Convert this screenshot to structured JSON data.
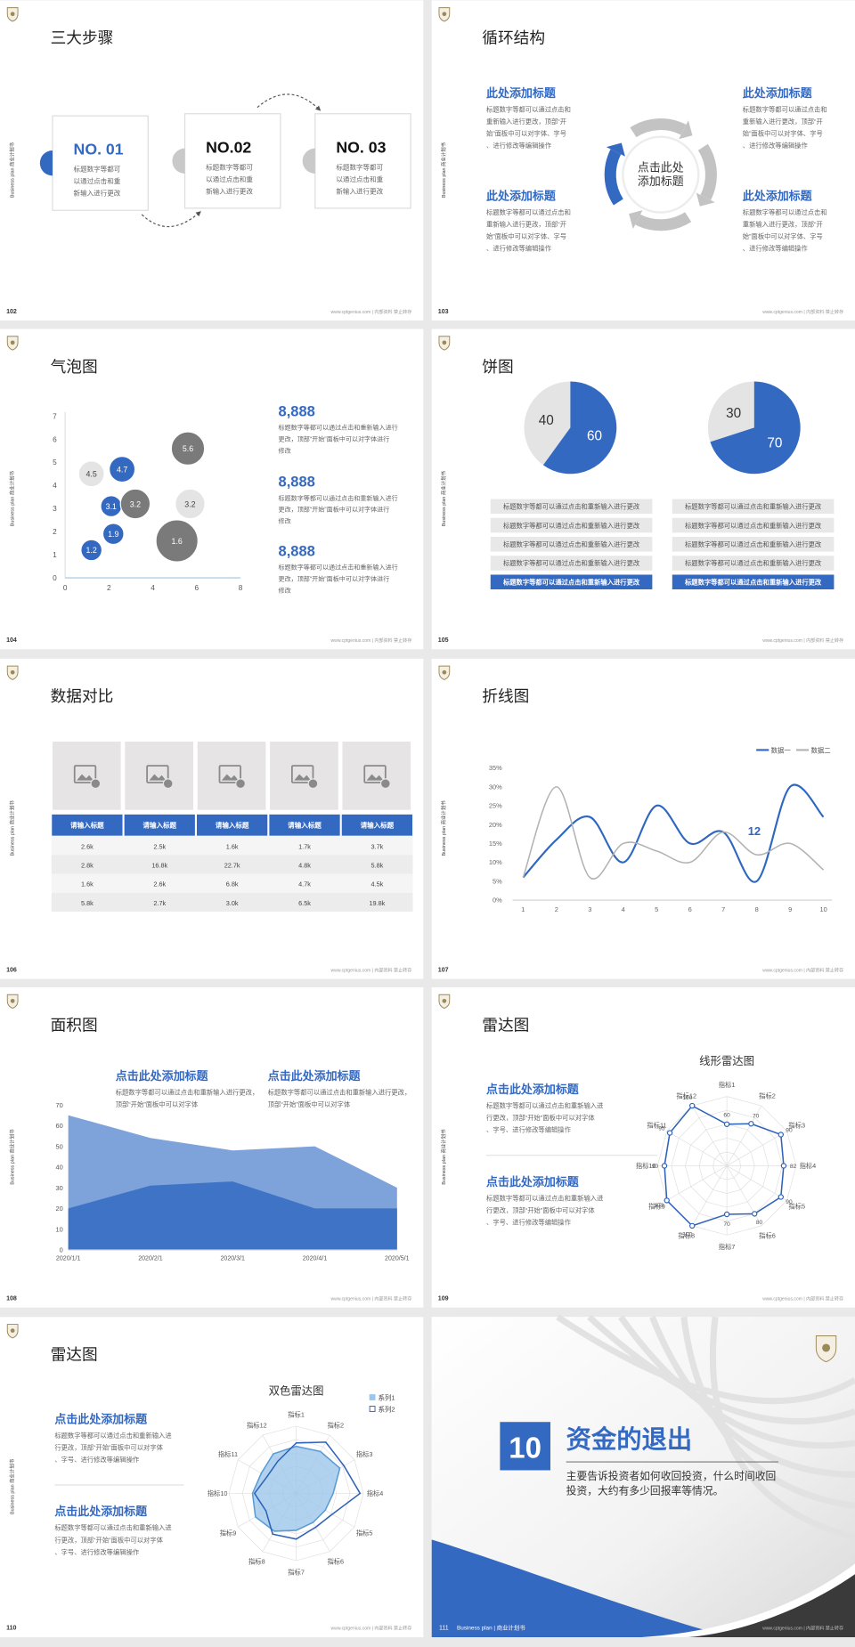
{
  "common": {
    "side_label": "Business plan 商业计划书",
    "footer": "www.cptgenius.com | 内部资料 禁止转存"
  },
  "slides": [
    {
      "page": "102",
      "title": "三大步骤",
      "steps": [
        {
          "label": "NO. 01",
          "text": "标题数字等都可以通过点击和重新输入进行更改"
        },
        {
          "label": "NO.02",
          "text": "标题数字等都可以通过点击和重新输入进行更改"
        },
        {
          "label": "NO. 03",
          "text": "标题数字等都可以通过点击和重新输入进行更改"
        }
      ]
    },
    {
      "page": "103",
      "title": "循环结构",
      "center": "点击此处添加标题",
      "items": [
        {
          "heading": "此处添加标题",
          "text": "标题数字等都可以通过点击和重新输入进行更改，顶部“开始”面板中可以对字体、字号、进行修改等编辑操作"
        },
        {
          "heading": "此处添加标题",
          "text": "标题数字等都可以通过点击和重新输入进行更改，顶部“开始”面板中可以对字体、字号、进行修改等编辑操作"
        },
        {
          "heading": "此处添加标题",
          "text": "标题数字等都可以通过点击和重新输入进行更改，顶部“开始”面板中可以对字体、字号、进行修改等编辑操作"
        },
        {
          "heading": "此处添加标题",
          "text": "标题数字等都可以通过点击和重新输入进行更改，顶部“开始”面板中可以对字体、字号、进行修改等编辑操作"
        }
      ]
    },
    {
      "page": "104",
      "title": "气泡图",
      "chart": {
        "type": "bubble",
        "xlim": [
          0,
          8
        ],
        "ylim": [
          0,
          7
        ],
        "xticks": [
          0,
          2,
          4,
          6,
          8
        ],
        "yticks": [
          0,
          1,
          2,
          3,
          4,
          5,
          6,
          7
        ],
        "series": [
          {
            "color": "#3469c2",
            "x": [
              1.2,
              2.2,
              2.1,
              2.6
            ],
            "values": [
              1.2,
              1.9,
              3.1,
              4.7
            ],
            "sizes": [
              4,
              4,
              4,
              6
            ]
          },
          {
            "color": "#e4e4e4",
            "x": [
              1.2,
              5.7
            ],
            "values": [
              4.5,
              3.2
            ],
            "sizes": [
              6,
              8
            ]
          },
          {
            "color": "#7a7a7a",
            "x": [
              3.2,
              5.1,
              5.6
            ],
            "values": [
              3.2,
              1.6,
              5.6
            ],
            "sizes": [
              8,
              16,
              10
            ]
          }
        ]
      },
      "items": [
        {
          "value": "8,888",
          "text": "标题数字等都可以通过点击和重新输入进行更改，顶部“开始”面板中可以对字体进行修改"
        },
        {
          "value": "8,888",
          "text": "标题数字等都可以通过点击和重新输入进行更改，顶部“开始”面板中可以对字体进行修改"
        },
        {
          "value": "8,888",
          "text": "标题数字等都可以通过点击和重新输入进行更改，顶部“开始”面板中可以对字体进行修改"
        }
      ]
    },
    {
      "page": "105",
      "title": "饼图",
      "pies": [
        {
          "type": "pie",
          "values": [
            40,
            60
          ],
          "colors": [
            "#e4e4e4",
            "#3469c2"
          ]
        },
        {
          "type": "pie",
          "values": [
            30,
            70
          ],
          "colors": [
            "#e4e4e4",
            "#3469c2"
          ]
        }
      ],
      "lists": [
        [
          "标题数字等都可以通过点击和重新输入进行更改",
          "标题数字等都可以通过点击和重新输入进行更改",
          "标题数字等都可以通过点击和重新输入进行更改",
          "标题数字等都可以通过点击和重新输入进行更改",
          "标题数字等都可以通过点击和重新输入进行更改"
        ],
        [
          "标题数字等都可以通过点击和重新输入进行更改",
          "标题数字等都可以通过点击和重新输入进行更改",
          "标题数字等都可以通过点击和重新输入进行更改",
          "标题数字等都可以通过点击和重新输入进行更改",
          "标题数字等都可以通过点击和重新输入进行更改"
        ]
      ]
    },
    {
      "page": "106",
      "title": "数据对比",
      "table": {
        "header": [
          "请输入标题",
          "请输入标题",
          "请输入标题",
          "请输入标题",
          "请输入标题"
        ],
        "rows": [
          [
            "2.6k",
            "2.5k",
            "1.6k",
            "1.7k",
            "3.7k"
          ],
          [
            "2.8k",
            "16.8k",
            "22.7k",
            "4.8k",
            "5.8k"
          ],
          [
            "1.6k",
            "2.6k",
            "6.8k",
            "4.7k",
            "4.5k"
          ],
          [
            "5.8k",
            "2.7k",
            "3.0k",
            "6.5k",
            "19.8k"
          ]
        ]
      }
    },
    {
      "page": "107",
      "title": "折线图",
      "chart": {
        "type": "line",
        "x": [
          1,
          2,
          3,
          4,
          5,
          6,
          7,
          8,
          9,
          10
        ],
        "xlim": [
          1,
          10
        ],
        "xticks": [
          1,
          2,
          3,
          4,
          5,
          6,
          7,
          8,
          9,
          10
        ],
        "ylim": [
          0,
          35
        ],
        "yticks": [
          {
            "value": 0,
            "label": "0%"
          },
          {
            "value": 5,
            "label": "5%"
          },
          {
            "value": 10,
            "label": "10%"
          },
          {
            "value": 15,
            "label": "15%"
          },
          {
            "value": 20,
            "label": "20%"
          },
          {
            "value": 25,
            "label": "25%"
          },
          {
            "value": 30,
            "label": "30%"
          },
          {
            "value": 35,
            "label": "35%"
          }
        ],
        "series": [
          {
            "name": "数据一",
            "color": "#2e66c0",
            "values": [
              6,
              16,
              22,
              10,
              25,
              15,
              18,
              5,
              30,
              22
            ]
          },
          {
            "name": "数据二",
            "color": "#b2b2b2",
            "values": [
              6,
              30,
              6,
              15,
              13,
              10,
              18,
              12,
              15,
              8
            ]
          }
        ],
        "annotation": "12"
      }
    },
    {
      "page": "108",
      "title": "面积图",
      "items": [
        {
          "heading": "点击此处添加标题",
          "text": "标题数字等都可以通过点击和重新输入进行更改，顶部“开始”面板中可以对字体"
        },
        {
          "heading": "点击此处添加标题",
          "text": "标题数字等都可以通过点击和重新输入进行更改，顶部“开始”面板中可以对字体"
        }
      ],
      "chart": {
        "type": "area",
        "categories": [
          "2020/1/1",
          "2020/2/1",
          "2020/3/1",
          "2020/4/1",
          "2020/5/1"
        ],
        "ylim": [
          0,
          70
        ],
        "yticks": [
          0,
          10,
          20,
          30,
          40,
          50,
          60,
          70
        ],
        "series": [
          {
            "color": "#7ea2da",
            "values": [
              65,
              54,
              48,
              50,
              30
            ]
          },
          {
            "color": "#3e73c5",
            "values": [
              20,
              31,
              33,
              20,
              20
            ]
          }
        ]
      }
    },
    {
      "page": "109",
      "title": "雷达图",
      "items": [
        {
          "heading": "点击此处添加标题",
          "text": "标题数字等都可以通过点击和重新输入进行更改，顶部“开始”面板中可以对字体、字号、进行修改等编辑操作"
        },
        {
          "heading": "点击此处添加标题",
          "text": "标题数字等都可以通过点击和重新输入进行更改，顶部“开始”面板中可以对字体、字号、进行修改等编辑操作"
        }
      ],
      "chart": {
        "type": "radar",
        "title": "线形雷达图",
        "categories": [
          "指标1",
          "指标2",
          "指标3",
          "指标4",
          "指标5",
          "指标6",
          "指标7",
          "指标8",
          "指标9",
          "指标10",
          "指标11",
          "指标12"
        ],
        "rlim": [
          0,
          100
        ],
        "series": [
          {
            "color": "#2e62b8",
            "values": [
              60,
              70,
              90,
              82,
              90,
              80,
              70,
              100,
              100,
              90,
              95,
              100
            ]
          }
        ]
      }
    },
    {
      "page": "110",
      "title": "雷达图",
      "items": [
        {
          "heading": "点击此处添加标题",
          "text": "标题数字等都可以通过点击和重新输入进行更改，顶部“开始”面板中可以对字体、字号、进行修改等编辑操作"
        },
        {
          "heading": "点击此处添加标题",
          "text": "标题数字等都可以通过点击和重新输入进行更改，顶部“开始”面板中可以对字体、字号、进行修改等编辑操作"
        }
      ],
      "chart": {
        "type": "radar",
        "title": "双色雷达图",
        "categories": [
          "指标1",
          "指标2",
          "指标3",
          "指标4",
          "指标5",
          "指标6",
          "指标7",
          "指标8",
          "指标9",
          "指标10",
          "指标11",
          "指标12"
        ],
        "rlim": [
          0,
          100
        ],
        "series": [
          {
            "name": "系列1",
            "color": "#9cc7ea",
            "values": [
              70,
              72,
              75,
              55,
              50,
              50,
              55,
              65,
              70,
              65,
              60,
              68
            ]
          },
          {
            "name": "系列2",
            "color": "#2e62b8",
            "values": [
              75,
              88,
              82,
              95,
              62,
              58,
              68,
              70,
              52,
              62,
              50,
              55
            ]
          }
        ]
      }
    },
    {
      "page": "111",
      "number": "10",
      "title": "资金的退出",
      "text": "主要告诉投资者如何收回投资，什么时间收回投资，大约有多少回报率等情况。",
      "footer_label": "Business plan | 商业计划书"
    }
  ]
}
